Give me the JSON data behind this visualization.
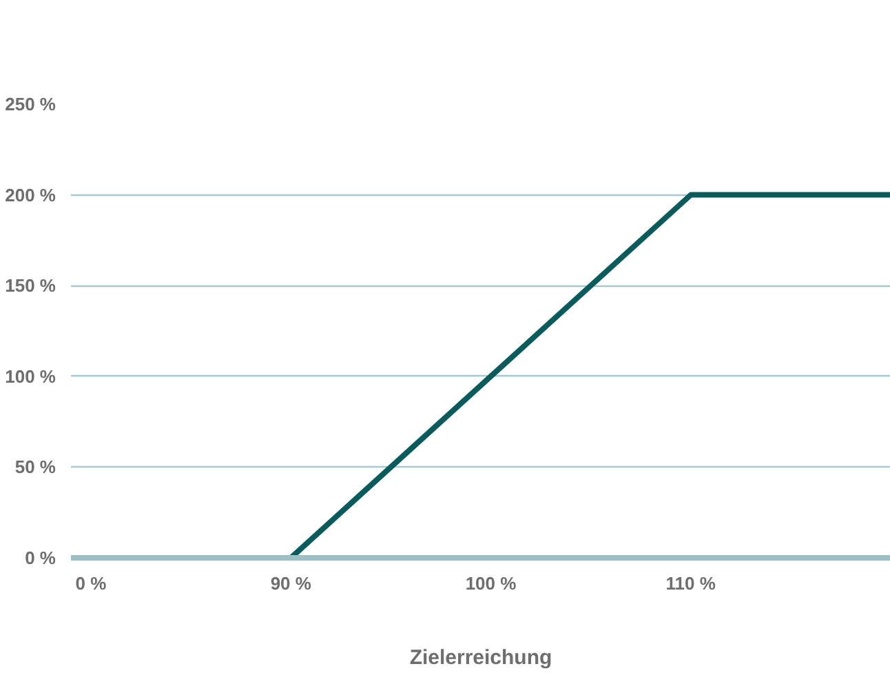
{
  "chart_data": {
    "type": "line",
    "xlabel": "Zielerreichung",
    "categories": [
      "0 %",
      "90 %",
      "100 %",
      "110 %",
      null
    ],
    "series": [
      {
        "color": "#0b5a5c",
        "values": [
          0,
          0,
          100,
          200,
          200
        ]
      }
    ],
    "ylim": [
      0,
      250
    ],
    "yticks": [
      {
        "value": 0,
        "label": "0 %"
      },
      {
        "value": 50,
        "label": "50 %"
      },
      {
        "value": 100,
        "label": "100 %"
      },
      {
        "value": 150,
        "label": "150 %"
      },
      {
        "value": 200,
        "label": "200 %"
      },
      {
        "value": 250,
        "label": "250 %"
      }
    ],
    "grid": "y",
    "marker": "none",
    "line_style": "solid"
  }
}
